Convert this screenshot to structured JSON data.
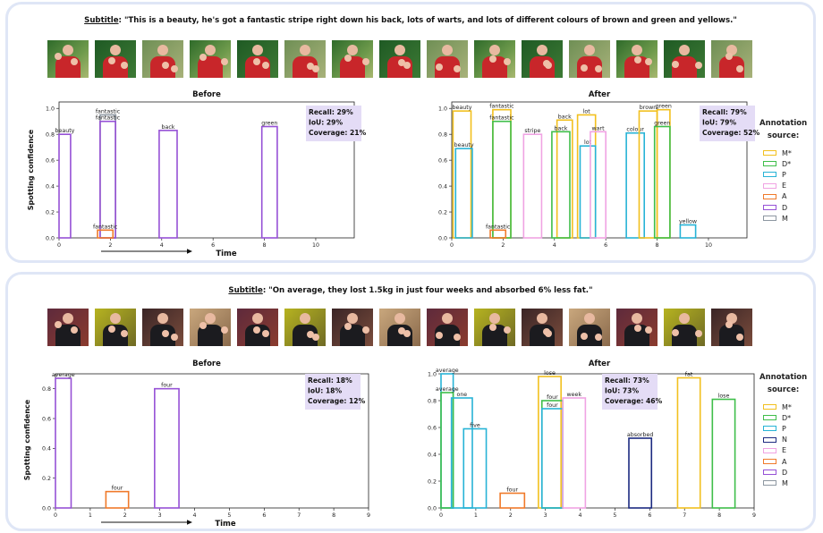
{
  "panels": [
    {
      "subtitle_label": "Subtitle",
      "subtitle_text": ": \"This is a beauty, he's got a fantastic stripe right down his back, lots of warts, and lots of different colours of brown and green and yellows.\"",
      "legend_title_1": "Annotation",
      "legend_title_2": "source:",
      "legend": [
        "M*",
        "D*",
        "P",
        "E",
        "A",
        "D",
        "M"
      ]
    },
    {
      "subtitle_label": "Subtitle",
      "subtitle_text": ": \"On average, they lost 1.5kg in just four weeks and absorbed 6% less fat.\"",
      "legend_title_1": "Annotation",
      "legend_title_2": "source:",
      "legend": [
        "M*",
        "D*",
        "P",
        "N",
        "E",
        "A",
        "D",
        "M"
      ]
    }
  ],
  "colors": {
    "M*": "#f2c01e",
    "D*": "#3fbe4a",
    "P": "#27b3d6",
    "N": "#1c2a80",
    "E": "#f0a3e3",
    "A": "#f07a2a",
    "D": "#9651d6",
    "M": "#8d97a1"
  },
  "chart_data": [
    {
      "type": "bar",
      "title": "Before",
      "xlabel": "Time",
      "ylabel": "Spotting confidence",
      "xlim": [
        0,
        11.5
      ],
      "ylim": [
        0,
        1.05
      ],
      "xticks": [
        0,
        2,
        4,
        6,
        8,
        10
      ],
      "yticks": [
        0.0,
        0.2,
        0.4,
        0.6,
        0.8,
        1.0
      ],
      "metrics": [
        "Recall: 29%",
        "IoU: 29%",
        "Coverage: 21%"
      ],
      "bars": [
        {
          "word": "beauty",
          "src": "D",
          "x0": 0.0,
          "x1": 0.45,
          "y": 0.8
        },
        {
          "word": "fantastic",
          "src": "M",
          "x0": 1.6,
          "x1": 2.2,
          "y": 0.95
        },
        {
          "word": "fantastic",
          "src": "D",
          "x0": 1.6,
          "x1": 2.2,
          "y": 0.9
        },
        {
          "word": "fantastic",
          "src": "A",
          "x0": 1.5,
          "x1": 2.1,
          "y": 0.06
        },
        {
          "word": "back",
          "src": "D",
          "x0": 3.9,
          "x1": 4.6,
          "y": 0.83
        },
        {
          "word": "green",
          "src": "D",
          "x0": 7.9,
          "x1": 8.5,
          "y": 0.86
        }
      ]
    },
    {
      "type": "bar",
      "title": "After",
      "xlabel": "",
      "ylabel": "",
      "xlim": [
        0,
        11.5
      ],
      "ylim": [
        0,
        1.05
      ],
      "xticks": [
        0,
        2,
        4,
        6,
        8,
        10
      ],
      "yticks": [
        0.0,
        0.2,
        0.4,
        0.6,
        0.8,
        1.0
      ],
      "metrics": [
        "Recall: 79%",
        "IoU: 79%",
        "Coverage: 52%"
      ],
      "bars": [
        {
          "word": "beauty",
          "src": "M*",
          "x0": 0.05,
          "x1": 0.75,
          "y": 0.98
        },
        {
          "word": "beauty",
          "src": "P",
          "x0": 0.15,
          "x1": 0.8,
          "y": 0.69
        },
        {
          "word": "fantastic",
          "src": "M*",
          "x0": 1.6,
          "x1": 2.3,
          "y": 0.99
        },
        {
          "word": "fantastic",
          "src": "D*",
          "x0": 1.6,
          "x1": 2.3,
          "y": 0.9
        },
        {
          "word": "fantastic",
          "src": "A",
          "x0": 1.5,
          "x1": 2.1,
          "y": 0.06
        },
        {
          "word": "stripe",
          "src": "E",
          "x0": 2.8,
          "x1": 3.5,
          "y": 0.8
        },
        {
          "word": "back",
          "src": "M*",
          "x0": 4.1,
          "x1": 4.7,
          "y": 0.91
        },
        {
          "word": "back",
          "src": "D*",
          "x0": 3.9,
          "x1": 4.6,
          "y": 0.82
        },
        {
          "word": "lot",
          "src": "M*",
          "x0": 4.9,
          "x1": 5.6,
          "y": 0.95
        },
        {
          "word": "lot",
          "src": "P",
          "x0": 5.0,
          "x1": 5.6,
          "y": 0.71
        },
        {
          "word": "wart",
          "src": "E",
          "x0": 5.4,
          "x1": 6.0,
          "y": 0.82
        },
        {
          "word": "colour",
          "src": "P",
          "x0": 6.8,
          "x1": 7.5,
          "y": 0.81
        },
        {
          "word": "brown",
          "src": "M*",
          "x0": 7.3,
          "x1": 8.0,
          "y": 0.98
        },
        {
          "word": "green",
          "src": "M*",
          "x0": 8.0,
          "x1": 8.5,
          "y": 0.99
        },
        {
          "word": "green",
          "src": "D*",
          "x0": 7.9,
          "x1": 8.5,
          "y": 0.86
        },
        {
          "word": "yellow",
          "src": "P",
          "x0": 8.9,
          "x1": 9.5,
          "y": 0.1
        }
      ]
    },
    {
      "type": "bar",
      "title": "Before",
      "xlabel": "Time",
      "ylabel": "Spotting confidence",
      "xlim": [
        0,
        9
      ],
      "ylim": [
        0,
        0.9
      ],
      "xticks": [
        0,
        1,
        2,
        3,
        4,
        5,
        6,
        7,
        8,
        9
      ],
      "yticks": [
        0.0,
        0.2,
        0.4,
        0.6,
        0.8
      ],
      "metrics": [
        "Recall: 18%",
        "IoU: 18%",
        "Coverage: 12%"
      ],
      "bars": [
        {
          "word": "average",
          "src": "D",
          "x0": 0.0,
          "x1": 0.45,
          "y": 0.87
        },
        {
          "word": "four",
          "src": "A",
          "x0": 1.45,
          "x1": 2.1,
          "y": 0.11
        },
        {
          "word": "four",
          "src": "D",
          "x0": 2.85,
          "x1": 3.55,
          "y": 0.8
        }
      ]
    },
    {
      "type": "bar",
      "title": "After",
      "xlabel": "",
      "ylabel": "",
      "xlim": [
        0,
        9
      ],
      "ylim": [
        0,
        1.0
      ],
      "xticks": [
        0,
        1,
        2,
        3,
        4,
        5,
        6,
        7,
        8,
        9
      ],
      "yticks": [
        0.0,
        0.2,
        0.4,
        0.6,
        0.8,
        1.0
      ],
      "metrics": [
        "Recall: 73%",
        "IoU: 73%",
        "Coverage: 46%"
      ],
      "bars": [
        {
          "word": "average",
          "src": "P",
          "x0": 0.0,
          "x1": 0.35,
          "y": 1.0
        },
        {
          "word": "average",
          "src": "D*",
          "x0": 0.0,
          "x1": 0.35,
          "y": 0.86
        },
        {
          "word": "one",
          "src": "P",
          "x0": 0.3,
          "x1": 0.9,
          "y": 0.82
        },
        {
          "word": "five",
          "src": "P",
          "x0": 0.65,
          "x1": 1.3,
          "y": 0.59
        },
        {
          "word": "four",
          "src": "A",
          "x0": 1.7,
          "x1": 2.4,
          "y": 0.11
        },
        {
          "word": "lose",
          "src": "M*",
          "x0": 2.8,
          "x1": 3.45,
          "y": 0.98
        },
        {
          "word": "four",
          "src": "D*",
          "x0": 2.9,
          "x1": 3.5,
          "y": 0.8
        },
        {
          "word": "four",
          "src": "P",
          "x0": 2.9,
          "x1": 3.5,
          "y": 0.74
        },
        {
          "word": "week",
          "src": "E",
          "x0": 3.5,
          "x1": 4.15,
          "y": 0.82
        },
        {
          "word": "absorbed",
          "src": "N",
          "x0": 5.4,
          "x1": 6.05,
          "y": 0.52
        },
        {
          "word": "fat",
          "src": "M*",
          "x0": 6.8,
          "x1": 7.45,
          "y": 0.97
        },
        {
          "word": "lose",
          "src": "D*",
          "x0": 7.8,
          "x1": 8.45,
          "y": 0.81
        }
      ]
    }
  ]
}
